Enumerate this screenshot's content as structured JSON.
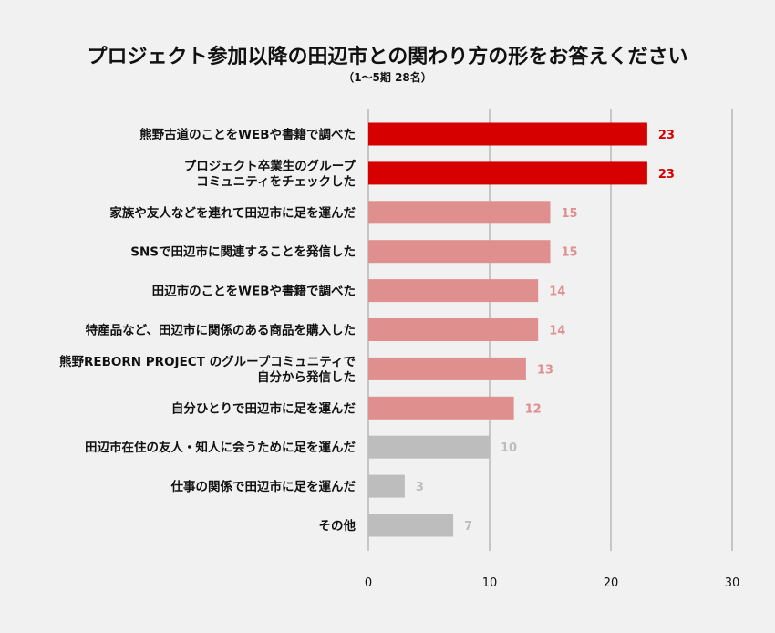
{
  "chart_data": {
    "type": "bar",
    "orientation": "horizontal",
    "title": "プロジェクト参加以降の田辺市との関わり方の形をお答えください",
    "subtitle": "（1〜5期 28名）",
    "categories": [
      [
        "熊野古道のことをWEBや書籍で調べた"
      ],
      [
        "プロジェクト卒業生のグループ",
        "コミュニティをチェックした"
      ],
      [
        "家族や友人などを連れて田辺市に足を運んだ"
      ],
      [
        "SNSで田辺市に関連することを発信した"
      ],
      [
        "田辺市のことをWEBや書籍で調べた"
      ],
      [
        "特産品など、田辺市に関係のある商品を購入した"
      ],
      [
        "熊野REBORN PROJECT のグループコミュニティで",
        "自分から発信した"
      ],
      [
        "自分ひとりで田辺市に足を運んだ"
      ],
      [
        "田辺市在住の友人・知人に会うために足を運んだ"
      ],
      [
        "仕事の関係で田辺市に足を運んだ"
      ],
      [
        "その他"
      ]
    ],
    "values": [
      23,
      23,
      15,
      15,
      14,
      14,
      13,
      12,
      10,
      3,
      7
    ],
    "bar_colors": [
      "#d60000",
      "#d60000",
      "#e08f8f",
      "#e08f8f",
      "#e08f8f",
      "#e08f8f",
      "#e08f8f",
      "#e08f8f",
      "#bdbdbd",
      "#bdbdbd",
      "#bdbdbd"
    ],
    "label_colors": [
      "#d60000",
      "#d60000",
      "#e08f8f",
      "#e08f8f",
      "#e08f8f",
      "#e08f8f",
      "#e08f8f",
      "#e08f8f",
      "#bdbdbd",
      "#bdbdbd",
      "#bdbdbd"
    ],
    "xlim": [
      0,
      30
    ],
    "xticks": [
      0,
      10,
      20,
      30
    ],
    "grid": true,
    "xlabel": "",
    "ylabel": ""
  }
}
